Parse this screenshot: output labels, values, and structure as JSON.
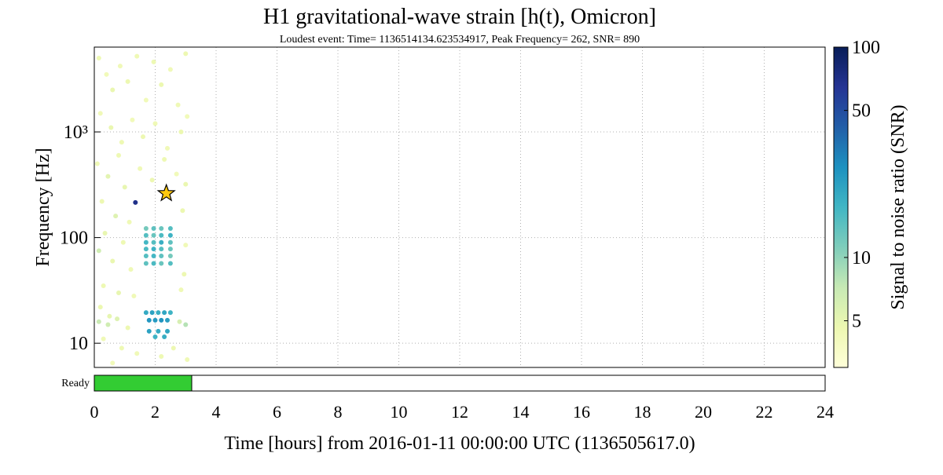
{
  "chart_data": {
    "type": "scatter",
    "title": "H1 gravitational-wave strain [h(t), Omicron]",
    "subtitle": "Loudest event: Time= 1136514134.623534917, Peak Frequency= 262, SNR= 890",
    "xlabel": "Time [hours] from 2016-01-11 00:00:00 UTC (1136505617.0)",
    "ylabel": "Frequency [Hz]",
    "xlim": [
      0,
      24
    ],
    "xticks": [
      0,
      2,
      4,
      6,
      8,
      10,
      12,
      14,
      16,
      18,
      20,
      22,
      24
    ],
    "ylim": [
      5.9,
      6350
    ],
    "yscale": "log",
    "yticks": [
      10,
      100,
      {
        "value": 1000,
        "label": "10³"
      }
    ],
    "grid": true,
    "x": [
      0.15,
      0.4,
      0.6,
      0.85,
      1.1,
      1.4,
      1.7,
      1.95,
      2.2,
      2.5,
      2.75,
      3.0,
      0.2,
      0.55,
      0.9,
      1.25,
      1.6,
      2.0,
      2.4,
      2.85,
      3.05,
      0.1,
      0.45,
      0.8,
      1.0,
      1.5,
      1.9,
      2.3,
      2.7,
      3.0,
      0.25,
      0.7,
      1.15,
      2.9,
      0.35,
      0.95,
      3.0,
      0.15,
      0.6,
      1.2,
      2.95,
      0.3,
      0.8,
      1.3,
      2.85,
      0.2,
      0.5,
      0.15,
      0.45,
      0.75,
      1.1,
      2.8,
      3.0,
      0.3,
      0.9,
      1.4,
      2.6,
      3.05,
      0.6,
      2.2,
      1.7,
      1.95,
      2.2,
      2.5,
      1.7,
      1.95,
      2.2,
      2.5,
      1.7,
      1.95,
      2.2,
      2.5,
      1.7,
      1.95,
      2.2,
      2.5,
      1.7,
      1.95,
      2.2,
      2.5,
      1.7,
      1.95,
      2.2,
      2.5,
      1.7,
      1.9,
      2.1,
      2.3,
      2.5,
      1.8,
      2.0,
      2.2,
      2.4,
      1.8,
      2.1,
      2.4,
      2.0,
      2.3,
      1.35
    ],
    "y": [
      5000,
      3500,
      2500,
      4200,
      3000,
      5200,
      2000,
      4600,
      2800,
      3900,
      1800,
      5500,
      1500,
      1100,
      800,
      1300,
      900,
      1200,
      700,
      1000,
      1400,
      500,
      380,
      600,
      300,
      450,
      350,
      550,
      400,
      320,
      220,
      160,
      140,
      180,
      110,
      90,
      85,
      75,
      60,
      50,
      45,
      35,
      30,
      28,
      32,
      22,
      18,
      16,
      15,
      17,
      14,
      16,
      15,
      11,
      9,
      8,
      9,
      7,
      6.5,
      7.5,
      57,
      57,
      57,
      57,
      67,
      67,
      67,
      67,
      78,
      78,
      78,
      78,
      90,
      90,
      90,
      90,
      105,
      105,
      105,
      105,
      122,
      122,
      122,
      122,
      19.5,
      19.5,
      19.5,
      19.5,
      19.5,
      16.5,
      16.5,
      16.5,
      16.5,
      13,
      13,
      13,
      11.5,
      11.5,
      215
    ],
    "snr": [
      4.5,
      4.2,
      4.8,
      4.3,
      4.6,
      4.4,
      4.2,
      4.5,
      4.7,
      4.3,
      4.4,
      4.6,
      4.3,
      4.8,
      4.5,
      4.2,
      4.6,
      4.4,
      4.3,
      4.7,
      4.2,
      4.4,
      5.2,
      4.5,
      4.9,
      4.3,
      4.6,
      4.5,
      4.2,
      4.8,
      4.6,
      5.5,
      4.4,
      4.7,
      4.9,
      4.5,
      4.3,
      6.5,
      4.8,
      4.4,
      4.6,
      4.5,
      4.9,
      4.3,
      4.4,
      4.7,
      5.0,
      7,
      6.5,
      5.5,
      4.6,
      6,
      8,
      4.4,
      4.5,
      4.3,
      4.6,
      4.4,
      4.2,
      4.5,
      14,
      16,
      13,
      15,
      15,
      17,
      14,
      12,
      16,
      18,
      15,
      13,
      17,
      15,
      19,
      14,
      15,
      13,
      16,
      18,
      12,
      14,
      13,
      15,
      20,
      22,
      19,
      21,
      18,
      25,
      24,
      26,
      23,
      22,
      20,
      21,
      18,
      19,
      70
    ],
    "colorbar": {
      "label": "Signal to noise ratio (SNR)",
      "lim": [
        3,
        100
      ],
      "scale": "log",
      "ticks": [
        5,
        10,
        50,
        100
      ],
      "colormap": [
        "#ffffd9",
        "#edf8b1",
        "#c7e9b4",
        "#7fcdbb",
        "#41b6c4",
        "#1d91c0",
        "#225ea8",
        "#253494",
        "#081d58"
      ]
    },
    "loudest": {
      "x": 2.366,
      "y": 262,
      "color": "#ffc90e"
    },
    "segments": {
      "name": "Ready",
      "color": "#33cc33",
      "ranges": [
        [
          0,
          3.2
        ]
      ]
    }
  }
}
